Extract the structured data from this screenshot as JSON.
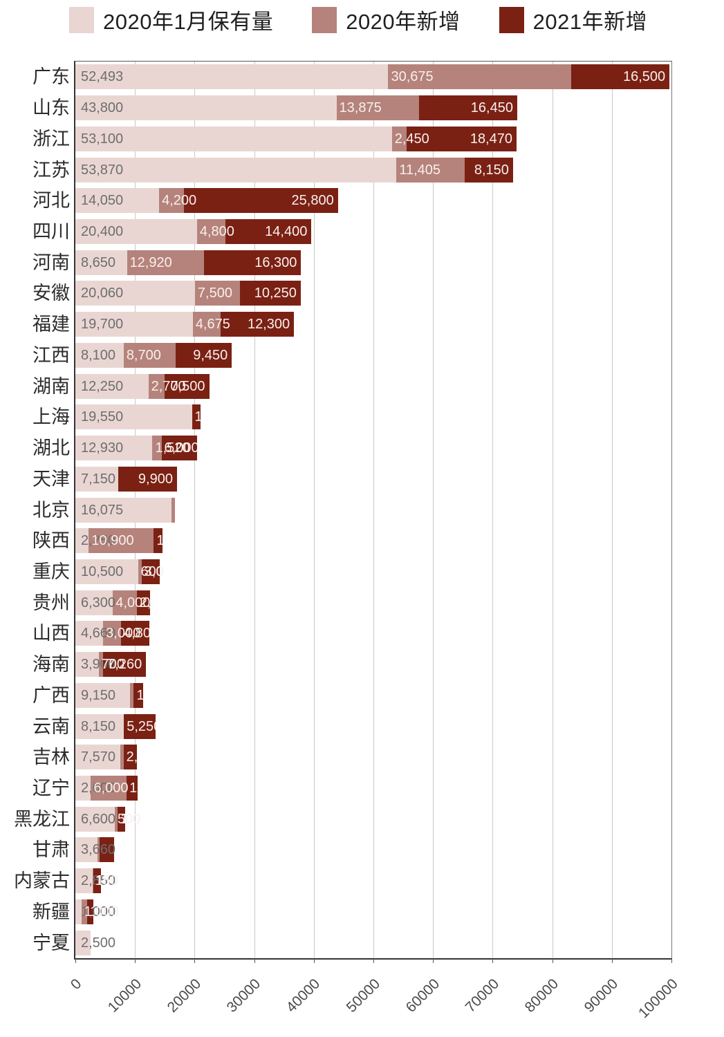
{
  "legend": {
    "items": [
      {
        "label": "2020年1月保有量",
        "color": "#e9d6d2"
      },
      {
        "label": "2020年新增",
        "color": "#b5837b"
      },
      {
        "label": "2021年新增",
        "color": "#7a2114"
      }
    ]
  },
  "chart_data": {
    "type": "bar",
    "orientation": "horizontal-stacked",
    "series_names": [
      "2020年1月保有量",
      "2020年新增",
      "2021年新增"
    ],
    "colors": [
      "#e9d6d2",
      "#b5837b",
      "#7a2114"
    ],
    "xlim": [
      0,
      100000
    ],
    "x_ticks": [
      "0",
      "10000",
      "20000",
      "30000",
      "40000",
      "50000",
      "60000",
      "70000",
      "80000",
      "90000",
      "100000"
    ],
    "grid": true,
    "label_colors": {
      "on_light": "#6e6e6e",
      "on_dark": "#f8f0ee"
    },
    "rows": [
      {
        "name": "广东",
        "values": [
          52493,
          30675,
          16500
        ],
        "labels": [
          "52,493",
          "30,675",
          "16,500"
        ]
      },
      {
        "name": "山东",
        "values": [
          43800,
          13875,
          16450
        ],
        "labels": [
          "43,800",
          "13,875",
          "16,450"
        ]
      },
      {
        "name": "浙江",
        "values": [
          53100,
          2450,
          18470
        ],
        "labels": [
          "53,100",
          "2,450",
          "18,470"
        ]
      },
      {
        "name": "江苏",
        "values": [
          53870,
          11405,
          8150
        ],
        "labels": [
          "53,870",
          "11,405",
          "8,150"
        ]
      },
      {
        "name": "河北",
        "values": [
          14050,
          4200,
          25800
        ],
        "labels": [
          "14,050",
          "4,200",
          "25,800"
        ]
      },
      {
        "name": "四川",
        "values": [
          20400,
          4800,
          14400
        ],
        "labels": [
          "20,400",
          "4,800",
          "14,400"
        ]
      },
      {
        "name": "河南",
        "values": [
          8650,
          12920,
          16300
        ],
        "labels": [
          "8,650",
          "12,920",
          "16,300"
        ]
      },
      {
        "name": "安徽",
        "values": [
          20060,
          7500,
          10250
        ],
        "labels": [
          "20,060",
          "7,500",
          "10,250"
        ]
      },
      {
        "name": "福建",
        "values": [
          19700,
          4675,
          12300
        ],
        "labels": [
          "19,700",
          "4,675",
          "12,300"
        ]
      },
      {
        "name": "江西",
        "values": [
          8100,
          8700,
          9450
        ],
        "labels": [
          "8,100",
          "8,700",
          "9,450"
        ]
      },
      {
        "name": "湖南",
        "values": [
          12250,
          2700,
          7500
        ],
        "labels": [
          "12,250",
          "2,700",
          "7,500"
        ]
      },
      {
        "name": "上海",
        "values": [
          19550,
          0,
          1400
        ],
        "labels": [
          "19,550",
          null,
          "1,400"
        ]
      },
      {
        "name": "湖北",
        "values": [
          12930,
          1520,
          6000
        ],
        "labels": [
          "12,930",
          "1,520",
          "6,000"
        ]
      },
      {
        "name": "天津",
        "values": [
          7150,
          0,
          9900
        ],
        "labels": [
          "7,150",
          null,
          "9,900"
        ]
      },
      {
        "name": "北京",
        "values": [
          16075,
          625,
          0
        ],
        "labels": [
          "16,075",
          null,
          null
        ]
      },
      {
        "name": "陕西",
        "values": [
          2250,
          10900,
          1500
        ],
        "labels": [
          "2,250",
          "10,900",
          "1,500"
        ]
      },
      {
        "name": "重庆",
        "values": [
          10500,
          600,
          3000
        ],
        "labels": [
          "10,500",
          "600",
          "3,000"
        ]
      },
      {
        "name": "贵州",
        "values": [
          6300,
          4000,
          2200
        ],
        "labels": [
          "6,300",
          "4,000",
          "2,200"
        ]
      },
      {
        "name": "山西",
        "values": [
          4660,
          3000,
          4800
        ],
        "labels": [
          "4,660",
          "3,000",
          "4,800"
        ]
      },
      {
        "name": "海南",
        "values": [
          3900,
          700,
          7260
        ],
        "labels": [
          "3,900",
          "700",
          "7,260"
        ]
      },
      {
        "name": "广西",
        "values": [
          9150,
          650,
          1600
        ],
        "labels": [
          "9,150",
          null,
          "1,600"
        ]
      },
      {
        "name": "云南",
        "values": [
          8150,
          0,
          5250
        ],
        "labels": [
          "8,150",
          null,
          "5,250"
        ]
      },
      {
        "name": "吉林",
        "values": [
          7570,
          500,
          2300
        ],
        "labels": [
          "7,570",
          null,
          "2,300"
        ]
      },
      {
        "name": "辽宁",
        "values": [
          2600,
          6000,
          1800
        ],
        "labels": [
          "2,600",
          "6,000",
          "1,800"
        ]
      },
      {
        "name": "黑龙江",
        "values": [
          6600,
          500,
          1200
        ],
        "labels": [
          "6,600",
          "500",
          "1,200"
        ]
      },
      {
        "name": "甘肃",
        "values": [
          3660,
          400,
          2400
        ],
        "labels": [
          "3,660",
          null,
          null
        ]
      },
      {
        "name": "内蒙古",
        "values": [
          2850,
          150,
          1300
        ],
        "labels": [
          "2,850",
          "150",
          "1,300"
        ]
      },
      {
        "name": "新疆",
        "values": [
          1000,
          1000,
          1000
        ],
        "labels": [
          "1,000",
          "1,000",
          "1,000"
        ]
      },
      {
        "name": "宁夏",
        "values": [
          2500,
          0,
          0
        ],
        "labels": [
          "2,500",
          null,
          null
        ]
      }
    ]
  }
}
